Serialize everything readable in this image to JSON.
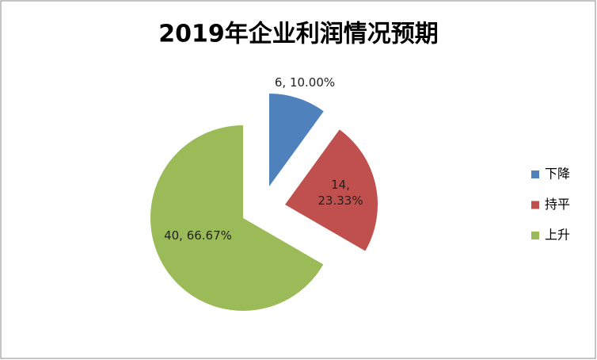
{
  "chart_data": {
    "type": "pie",
    "title": "2019年企业利润情况预期",
    "categories": [
      "下降",
      "持平",
      "上升"
    ],
    "values": [
      6,
      14,
      40
    ],
    "value_labels": [
      "6, 10.00%",
      "14, 23.33%",
      "40, 66.67%"
    ],
    "colors": [
      "#4f81bd",
      "#c0504d",
      "#9bbb59"
    ],
    "legend": "right"
  }
}
